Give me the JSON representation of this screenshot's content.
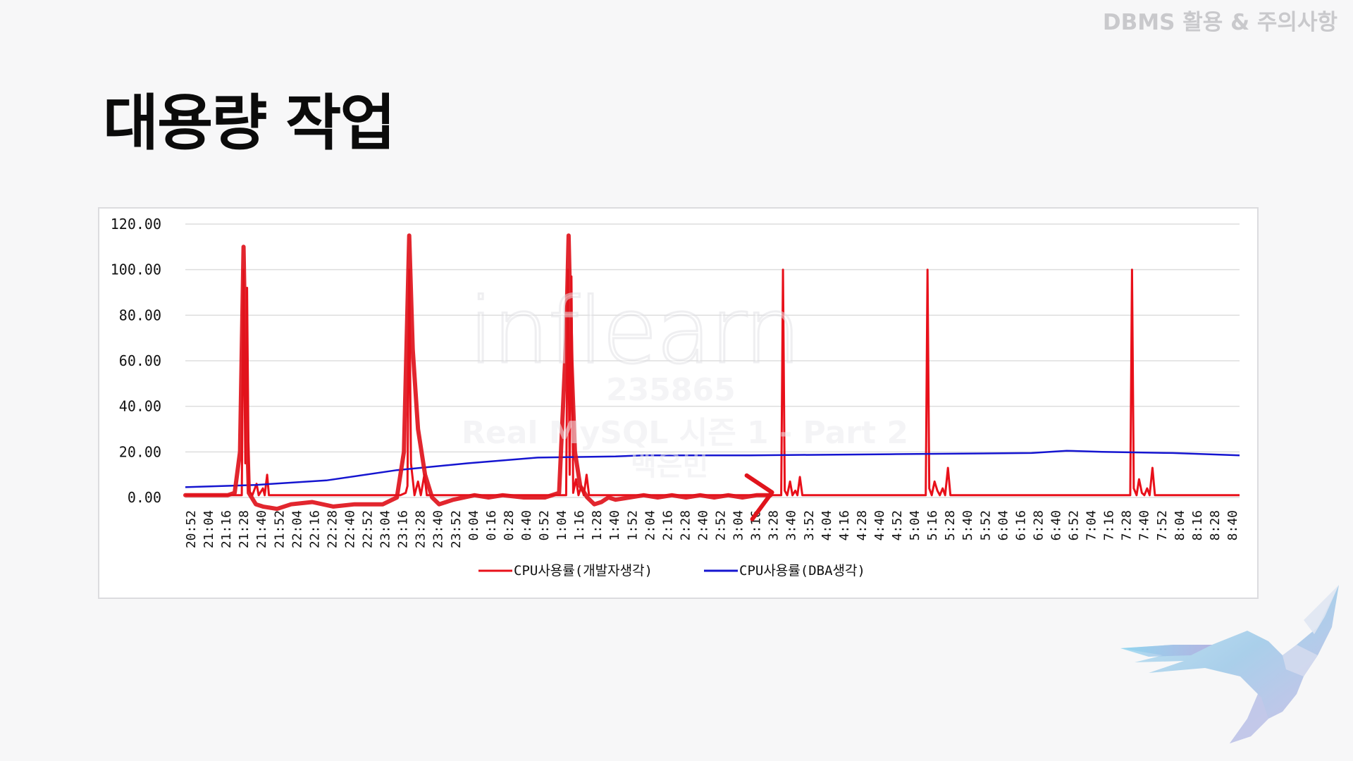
{
  "header": {
    "tag": "DBMS 활용 & 주의사항"
  },
  "slide": {
    "title": "대용량 작업"
  },
  "watermark": {
    "logo": "inflearn",
    "id": "235865",
    "course": "Real MySQL 시즌 1 - Part 2",
    "author": "백은빈"
  },
  "colors": {
    "developer_series": "#e8101a",
    "dba_series": "#1515d0",
    "annotation": "#e0141c",
    "grid": "#dddddd"
  },
  "icons": {
    "decoration": "eagle-illustration"
  },
  "chart_data": {
    "type": "line",
    "title": "",
    "xlabel": "",
    "ylabel": "",
    "ylim": [
      0,
      120
    ],
    "yticks": [
      "0.00",
      "20.00",
      "40.00",
      "60.00",
      "80.00",
      "100.00",
      "120.00"
    ],
    "x_tick_labels": [
      "20:52",
      "21:04",
      "21:16",
      "21:28",
      "21:40",
      "21:52",
      "22:04",
      "22:16",
      "22:28",
      "22:40",
      "22:52",
      "23:04",
      "23:16",
      "23:28",
      "23:40",
      "23:52",
      "0:04",
      "0:16",
      "0:28",
      "0:40",
      "0:52",
      "1:04",
      "1:16",
      "1:28",
      "1:40",
      "1:52",
      "2:04",
      "2:16",
      "2:28",
      "2:40",
      "2:52",
      "3:04",
      "3:16",
      "3:28",
      "3:40",
      "3:52",
      "4:04",
      "4:16",
      "4:28",
      "4:40",
      "4:52",
      "5:04",
      "5:16",
      "5:28",
      "5:40",
      "5:52",
      "6:04",
      "6:16",
      "6:28",
      "6:40",
      "6:52",
      "7:04",
      "7:16",
      "7:28",
      "7:40",
      "7:52",
      "8:04",
      "8:16",
      "8:28",
      "8:40"
    ],
    "grid": true,
    "legend": "bottom",
    "series": [
      {
        "name": "CPU사용률(개발자생각)",
        "color": "#e8101a",
        "points": [
          [
            0,
            1
          ],
          [
            14,
            1
          ],
          [
            16,
            1
          ],
          [
            16.5,
            100
          ],
          [
            17,
            15
          ],
          [
            17.5,
            92
          ],
          [
            18,
            3
          ],
          [
            19,
            1
          ],
          [
            20.2,
            6
          ],
          [
            20.8,
            1
          ],
          [
            22,
            4
          ],
          [
            22.5,
            1
          ],
          [
            23.2,
            10
          ],
          [
            23.7,
            1
          ],
          [
            26,
            1
          ],
          [
            50,
            1
          ],
          [
            61,
            1
          ],
          [
            62.5,
            2
          ],
          [
            63,
            5
          ],
          [
            63.5,
            100
          ],
          [
            64,
            15
          ],
          [
            64.5,
            8
          ],
          [
            65,
            1
          ],
          [
            66,
            7
          ],
          [
            66.8,
            1
          ],
          [
            67.8,
            10
          ],
          [
            68.5,
            1
          ],
          [
            95,
            1
          ],
          [
            108,
            1
          ],
          [
            108.5,
            100
          ],
          [
            109,
            10
          ],
          [
            109.5,
            97
          ],
          [
            110,
            2
          ],
          [
            110.8,
            8
          ],
          [
            111.5,
            1
          ],
          [
            112.3,
            5
          ],
          [
            113,
            1
          ],
          [
            113.8,
            10
          ],
          [
            114.5,
            1
          ],
          [
            168,
            1
          ],
          [
            169,
            1
          ],
          [
            169.5,
            100
          ],
          [
            170,
            3
          ],
          [
            170.7,
            1
          ],
          [
            171.5,
            7
          ],
          [
            172.2,
            1
          ],
          [
            173,
            3
          ],
          [
            173.6,
            1
          ],
          [
            174.3,
            9
          ],
          [
            175,
            1
          ],
          [
            209,
            1
          ],
          [
            210,
            1
          ],
          [
            210.5,
            100
          ],
          [
            211,
            4
          ],
          [
            211.7,
            1
          ],
          [
            212.5,
            7
          ],
          [
            213.3,
            3
          ],
          [
            214,
            1
          ],
          [
            214.8,
            4
          ],
          [
            215.5,
            1
          ],
          [
            216.3,
            13
          ],
          [
            217,
            1
          ],
          [
            267,
            1
          ],
          [
            268,
            1
          ],
          [
            268.5,
            100
          ],
          [
            269,
            4
          ],
          [
            269.8,
            1
          ],
          [
            270.5,
            8
          ],
          [
            271.3,
            2
          ],
          [
            272,
            1
          ],
          [
            272.8,
            4
          ],
          [
            273.5,
            1
          ],
          [
            274.3,
            13
          ],
          [
            275,
            1
          ],
          [
            299,
            1
          ]
        ]
      },
      {
        "name": "CPU사용률(DBA생각)",
        "color": "#1515d0",
        "points": [
          [
            0,
            4.5
          ],
          [
            20,
            5.5
          ],
          [
            40,
            7.5
          ],
          [
            60,
            12
          ],
          [
            80,
            15
          ],
          [
            100,
            17.5
          ],
          [
            122,
            18
          ],
          [
            130,
            18.5
          ],
          [
            160,
            18.5
          ],
          [
            200,
            19
          ],
          [
            240,
            19.5
          ],
          [
            250,
            20.5
          ],
          [
            260,
            20
          ],
          [
            280,
            19.5
          ],
          [
            299,
            18.5
          ]
        ]
      }
    ]
  },
  "annotations": {
    "hand_drawn_peaks": [
      [
        0,
        1
      ],
      [
        12,
        1
      ],
      [
        14,
        2
      ],
      [
        15.5,
        20
      ],
      [
        16.5,
        110
      ],
      [
        17.3,
        40
      ],
      [
        18,
        2
      ],
      [
        20,
        -3
      ],
      [
        22,
        -4
      ],
      [
        26,
        -5
      ],
      [
        30,
        -3
      ],
      [
        36,
        -2
      ],
      [
        42,
        -4
      ],
      [
        48,
        -3
      ],
      [
        56,
        -3
      ],
      [
        60,
        0
      ],
      [
        62,
        20
      ],
      [
        63.5,
        115
      ],
      [
        64.5,
        65
      ],
      [
        66,
        30
      ],
      [
        68,
        10
      ],
      [
        70,
        0
      ],
      [
        72,
        -3
      ],
      [
        76,
        -1
      ],
      [
        82,
        1
      ],
      [
        86,
        0
      ],
      [
        90,
        1
      ],
      [
        96,
        0
      ],
      [
        102,
        0
      ],
      [
        106,
        2
      ],
      [
        108,
        70
      ],
      [
        108.7,
        115
      ],
      [
        109.5,
        60
      ],
      [
        110.5,
        20
      ],
      [
        112,
        5
      ],
      [
        114,
        0
      ],
      [
        116,
        -3
      ],
      [
        118,
        -2
      ],
      [
        120,
        0
      ],
      [
        122,
        -1
      ],
      [
        126,
        0
      ],
      [
        130,
        1
      ],
      [
        134,
        0
      ],
      [
        138,
        1
      ],
      [
        142,
        0
      ],
      [
        146,
        1
      ],
      [
        150,
        0
      ],
      [
        154,
        1
      ],
      [
        158,
        0
      ],
      [
        162,
        1
      ],
      [
        166,
        1
      ]
    ],
    "arrow_tip": [
      166,
      1
    ]
  }
}
